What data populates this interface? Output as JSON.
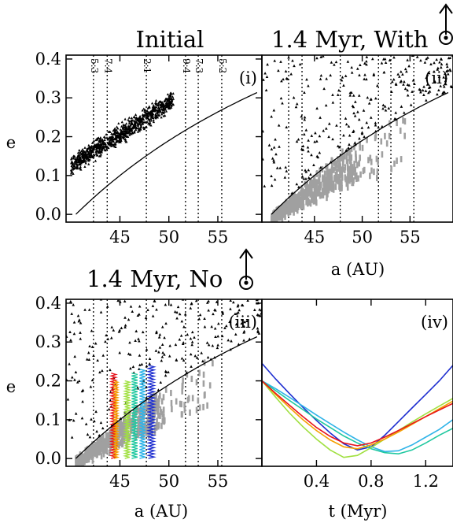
{
  "chart_data": [
    {
      "id": "i",
      "type": "scatter",
      "title": "Initial",
      "panel_label": "(i)",
      "xlabel": "",
      "ylabel": "e",
      "xlim": [
        39.5,
        59.5
      ],
      "ylim": [
        -0.02,
        0.41
      ],
      "xticks": [
        45,
        50,
        55
      ],
      "yticks": [
        0.0,
        0.1,
        0.2,
        0.3,
        0.4
      ],
      "yticklabels": [
        "0.0",
        "0.1",
        "0.2",
        "0.3",
        "0.4"
      ],
      "resonances": [
        {
          "label": "5:3",
          "a": 42.3
        },
        {
          "label": "7:4",
          "a": 43.7
        },
        {
          "label": "2:1",
          "a": 47.7
        },
        {
          "label": "9:4",
          "a": 51.7
        },
        {
          "label": "7:3",
          "a": 53.0
        },
        {
          "label": "5:2",
          "a": 55.4
        }
      ],
      "curve": {
        "description": "q = 40.5 AU",
        "q": 40.5,
        "x_range": [
          40.5,
          59.0
        ]
      },
      "cloud": {
        "a_range": [
          40.0,
          50.5
        ],
        "e_center_at": [
          [
            40.0,
            0.125
          ],
          [
            50.5,
            0.295
          ]
        ],
        "e_halfwidth": 0.035,
        "count": 900,
        "color": "#000000"
      }
    },
    {
      "id": "ii",
      "type": "scatter",
      "title": "1.4 Myr, With",
      "panel_label": "(ii)",
      "xlabel": "a (AU)",
      "ylabel": "",
      "xlim": [
        39.5,
        59.5
      ],
      "ylim": [
        -0.02,
        0.41
      ],
      "xticks": [
        45,
        50,
        55
      ],
      "resonances": [
        {
          "label": "",
          "a": 42.3
        },
        {
          "label": "",
          "a": 43.7
        },
        {
          "label": "",
          "a": 47.7
        },
        {
          "label": "",
          "a": 51.7
        },
        {
          "label": "",
          "a": 53.0
        },
        {
          "label": "",
          "a": 55.4
        }
      ],
      "curve": {
        "q": 40.5,
        "x_range": [
          40.5,
          59.0
        ]
      },
      "scattered_triangles": {
        "a_range": [
          39.5,
          59.5
        ],
        "e_range": [
          0.05,
          0.41
        ],
        "count": 280,
        "color": "#000000"
      },
      "captured_gray": {
        "a_range": [
          40.5,
          54.5
        ],
        "color": "#a0a0a0"
      }
    },
    {
      "id": "iii",
      "type": "scatter",
      "title": "1.4 Myr, No",
      "panel_label": "(iii)",
      "xlabel": "a (AU)",
      "ylabel": "e",
      "xlim": [
        39.5,
        59.5
      ],
      "ylim": [
        -0.02,
        0.41
      ],
      "xticks": [
        45,
        50,
        55
      ],
      "yticks": [
        0.0,
        0.1,
        0.2,
        0.3,
        0.4
      ],
      "yticklabels": [
        "0.0",
        "0.1",
        "0.2",
        "0.3",
        "0.4"
      ],
      "resonances": [
        {
          "label": "",
          "a": 42.3
        },
        {
          "label": "",
          "a": 43.7
        },
        {
          "label": "",
          "a": 47.7
        },
        {
          "label": "",
          "a": 51.7
        },
        {
          "label": "",
          "a": 53.0
        },
        {
          "label": "",
          "a": 55.4
        }
      ],
      "curve": {
        "q": 40.5,
        "x_range": [
          40.5,
          59.0
        ]
      },
      "scattered_triangles": {
        "a_range": [
          39.5,
          59.5
        ],
        "e_range": [
          0.05,
          0.41
        ],
        "count": 260,
        "color": "#000000"
      },
      "captured_gray": {
        "a_range": [
          40.5,
          54.5
        ],
        "color": "#a0a0a0"
      },
      "tracks": [
        {
          "color": "#e8141c",
          "a": [
            44.1,
            44.6
          ],
          "e_range": [
            0.0,
            0.22
          ]
        },
        {
          "color": "#f5a000",
          "a": [
            44.4,
            44.8
          ],
          "e_range": [
            0.0,
            0.2
          ]
        },
        {
          "color": "#a0e040",
          "a": [
            45.5,
            46.0
          ],
          "e_range": [
            0.0,
            0.2
          ]
        },
        {
          "color": "#20c8a0",
          "a": [
            46.2,
            46.8
          ],
          "e_range": [
            0.0,
            0.22
          ]
        },
        {
          "color": "#30b4e8",
          "a": [
            47.0,
            47.6
          ],
          "e_range": [
            0.0,
            0.23
          ]
        },
        {
          "color": "#1f2fd0",
          "a": [
            47.9,
            48.5
          ],
          "e_range": [
            0.0,
            0.24
          ]
        }
      ]
    },
    {
      "id": "iv",
      "type": "line",
      "title": "",
      "panel_label": "(iv)",
      "xlabel": "t (Myr)",
      "ylabel": "",
      "xlim": [
        0.0,
        1.4
      ],
      "ylim": [
        -0.02,
        0.41
      ],
      "xticks": [
        0.4,
        0.8,
        1.2
      ],
      "series": [
        {
          "color": "#1f2fd0",
          "x": [
            0.0,
            0.1,
            0.2,
            0.3,
            0.4,
            0.5,
            0.6,
            0.7,
            0.8,
            0.9,
            1.0,
            1.1,
            1.2,
            1.3,
            1.4
          ],
          "y": [
            0.245,
            0.205,
            0.168,
            0.132,
            0.098,
            0.066,
            0.038,
            0.022,
            0.03,
            0.06,
            0.095,
            0.13,
            0.165,
            0.2,
            0.24
          ]
        },
        {
          "color": "#30b4e8",
          "x": [
            0.0,
            0.1,
            0.2,
            0.3,
            0.4,
            0.5,
            0.6,
            0.7,
            0.8,
            0.9,
            1.0,
            1.1,
            1.2,
            1.3,
            1.4
          ],
          "y": [
            0.2,
            0.18,
            0.158,
            0.135,
            0.112,
            0.09,
            0.068,
            0.048,
            0.03,
            0.018,
            0.02,
            0.035,
            0.055,
            0.075,
            0.1
          ]
        },
        {
          "color": "#20c8a0",
          "x": [
            0.0,
            0.1,
            0.2,
            0.3,
            0.4,
            0.5,
            0.6,
            0.7,
            0.8,
            0.9,
            1.0,
            1.1,
            1.2,
            1.3,
            1.4
          ],
          "y": [
            0.2,
            0.175,
            0.15,
            0.126,
            0.102,
            0.08,
            0.058,
            0.04,
            0.025,
            0.015,
            0.012,
            0.022,
            0.04,
            0.06,
            0.078
          ]
        },
        {
          "color": "#a0e040",
          "x": [
            0.0,
            0.1,
            0.2,
            0.3,
            0.4,
            0.5,
            0.6,
            0.7,
            0.8,
            0.9,
            1.0,
            1.1,
            1.2,
            1.3,
            1.4
          ],
          "y": [
            0.2,
            0.158,
            0.118,
            0.082,
            0.05,
            0.022,
            0.003,
            0.008,
            0.028,
            0.05,
            0.072,
            0.094,
            0.115,
            0.135,
            0.155
          ]
        },
        {
          "color": "#f5a000",
          "x": [
            0.0,
            0.1,
            0.2,
            0.3,
            0.4,
            0.5,
            0.6,
            0.7,
            0.8,
            0.9,
            1.0,
            1.1,
            1.2,
            1.3,
            1.4
          ],
          "y": [
            0.2,
            0.165,
            0.132,
            0.1,
            0.072,
            0.048,
            0.03,
            0.025,
            0.035,
            0.05,
            0.068,
            0.088,
            0.108,
            0.128,
            0.148
          ]
        },
        {
          "color": "#e8141c",
          "x": [
            0.0,
            0.1,
            0.2,
            0.3,
            0.4,
            0.5,
            0.6,
            0.7,
            0.8,
            0.9,
            1.0,
            1.1,
            1.2,
            1.3,
            1.4
          ],
          "y": [
            0.2,
            0.168,
            0.138,
            0.108,
            0.08,
            0.057,
            0.04,
            0.033,
            0.04,
            0.055,
            0.072,
            0.09,
            0.108,
            0.125,
            0.142
          ]
        }
      ]
    }
  ],
  "icons": [
    "neptune-symbol-icon",
    "arrow-up-icon"
  ]
}
